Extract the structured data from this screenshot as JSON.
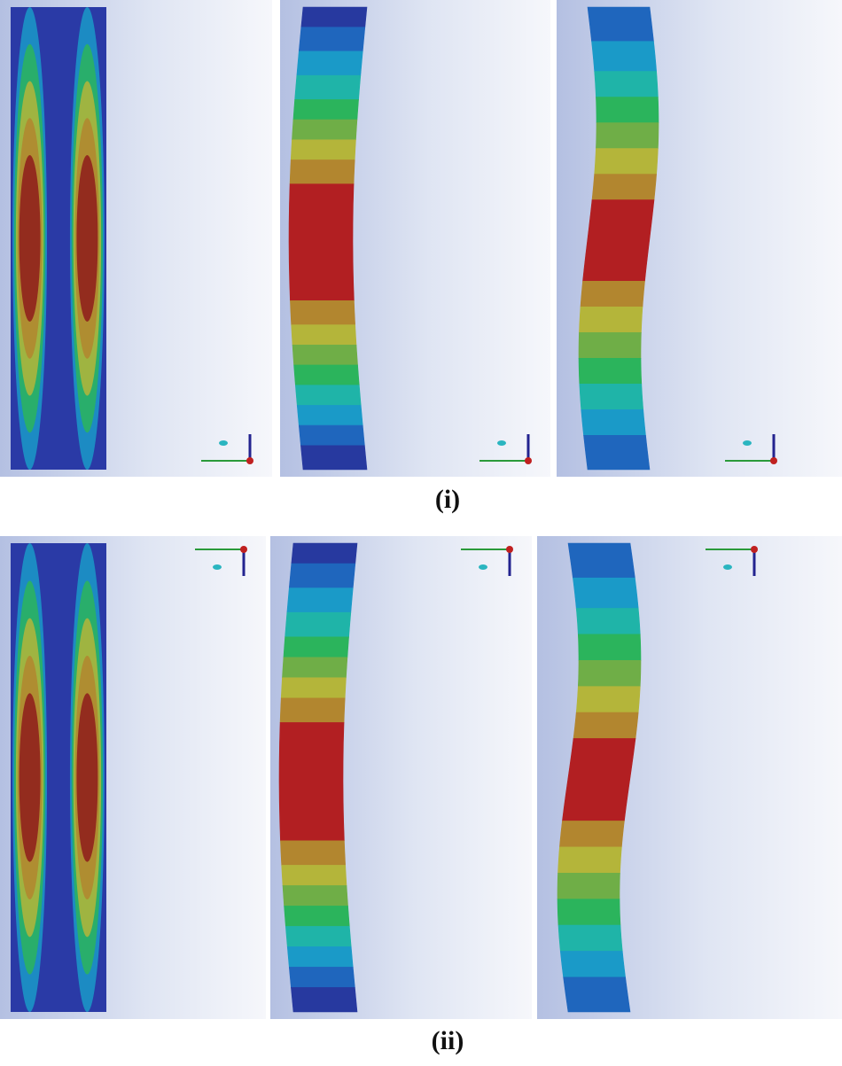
{
  "figure": {
    "rows": [
      {
        "label": "(i)"
      },
      {
        "label": "(ii)"
      }
    ]
  }
}
